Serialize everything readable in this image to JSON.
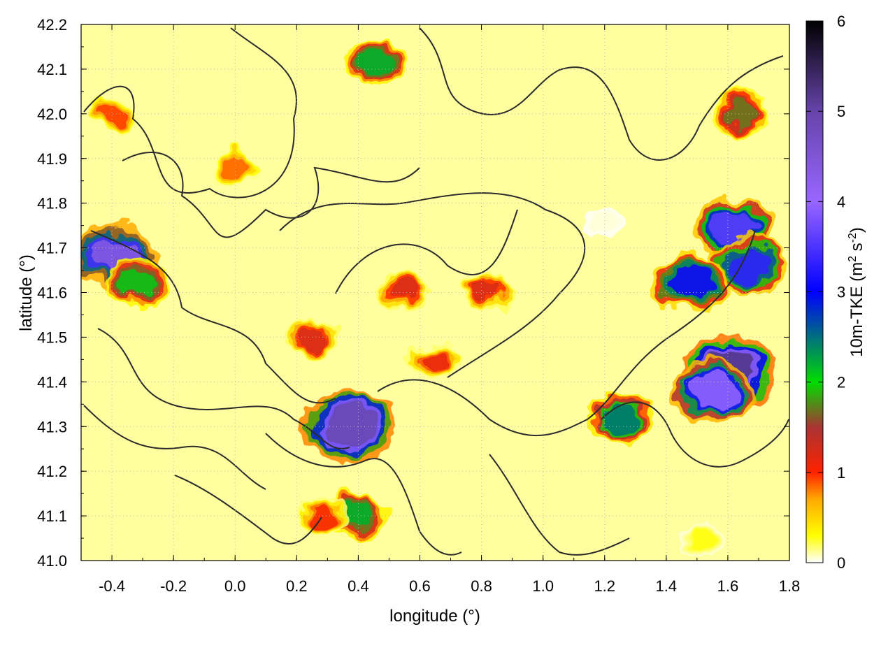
{
  "chart_data": {
    "type": "heatmap",
    "title": "",
    "xlabel": "longitude (°)",
    "ylabel": "latitude (°)",
    "xlim": [
      -0.5,
      1.8
    ],
    "ylim": [
      41.0,
      42.2
    ],
    "xticks": [
      -0.4,
      -0.2,
      0.0,
      0.2,
      0.4,
      0.6,
      0.8,
      1.0,
      1.2,
      1.4,
      1.6,
      1.8
    ],
    "xtick_labels": [
      "-0.4",
      "-0.2",
      "0.0",
      "0.2",
      "0.4",
      "0.6",
      "0.8",
      "1.0",
      "1.2",
      "1.4",
      "1.6",
      "1.8"
    ],
    "yticks": [
      41.0,
      41.1,
      41.2,
      41.3,
      41.4,
      41.5,
      41.6,
      41.7,
      41.8,
      41.9,
      42.0,
      42.1,
      42.2
    ],
    "ytick_labels": [
      "41.0",
      "41.1",
      "41.2",
      "41.3",
      "41.4",
      "41.5",
      "41.6",
      "41.7",
      "41.8",
      "41.9",
      "42.0",
      "42.1",
      "42.2"
    ],
    "grid": true,
    "colorbar": {
      "label_main": "10m-TKE (m",
      "label_sup1": "2",
      "label_mid": " s",
      "label_sup2": "-2",
      "label_end": ")",
      "range": [
        0,
        6
      ],
      "ticks": [
        0,
        1,
        2,
        3,
        4,
        5,
        6
      ],
      "tick_labels": [
        "0",
        "1",
        "2",
        "3",
        "4",
        "5",
        "6"
      ],
      "palette": [
        {
          "v": 0.0,
          "color": "#ffffff"
        },
        {
          "v": 0.3,
          "color": "#ffff00"
        },
        {
          "v": 0.7,
          "color": "#ffaa00"
        },
        {
          "v": 1.0,
          "color": "#ff2200"
        },
        {
          "v": 1.5,
          "color": "#aa3333"
        },
        {
          "v": 2.0,
          "color": "#00dd00"
        },
        {
          "v": 3.0,
          "color": "#0000ff"
        },
        {
          "v": 4.0,
          "color": "#9966ff"
        },
        {
          "v": 5.0,
          "color": "#6644aa"
        },
        {
          "v": 6.0,
          "color": "#000000"
        }
      ]
    },
    "hotspots": [
      {
        "lon": 1.6,
        "lat": 41.42,
        "tke": 5.5
      },
      {
        "lon": 1.55,
        "lat": 41.38,
        "tke": 4.2
      },
      {
        "lon": 1.62,
        "lat": 41.75,
        "tke": 3.8
      },
      {
        "lon": 1.67,
        "lat": 41.66,
        "tke": 3.5
      },
      {
        "lon": 1.48,
        "lat": 41.62,
        "tke": 3.2
      },
      {
        "lon": 0.37,
        "lat": 41.3,
        "tke": 5.2
      },
      {
        "lon": 0.4,
        "lat": 41.1,
        "tke": 2.3
      },
      {
        "lon": -0.39,
        "lat": 41.68,
        "tke": 4.6
      },
      {
        "lon": -0.32,
        "lat": 41.62,
        "tke": 2.2
      },
      {
        "lon": 0.55,
        "lat": 41.6,
        "tke": 1.3
      },
      {
        "lon": 0.82,
        "lat": 41.6,
        "tke": 1.3
      },
      {
        "lon": 0.65,
        "lat": 41.45,
        "tke": 1.2
      },
      {
        "lon": 0.25,
        "lat": 41.5,
        "tke": 1.3
      },
      {
        "lon": 0.45,
        "lat": 42.12,
        "tke": 2.3
      },
      {
        "lon": 1.65,
        "lat": 42.0,
        "tke": 1.8
      },
      {
        "lon": 1.25,
        "lat": 41.32,
        "tke": 2.6
      },
      {
        "lon": 0.28,
        "lat": 41.1,
        "tke": 1.1
      },
      {
        "lon": -0.4,
        "lat": 42.0,
        "tke": 1.0
      },
      {
        "lon": 0.0,
        "lat": 41.88,
        "tke": 0.9
      },
      {
        "lon": 1.5,
        "lat": 41.05,
        "tke": 0.3
      },
      {
        "lon": 1.2,
        "lat": 41.75,
        "tke": 0.05
      }
    ]
  }
}
